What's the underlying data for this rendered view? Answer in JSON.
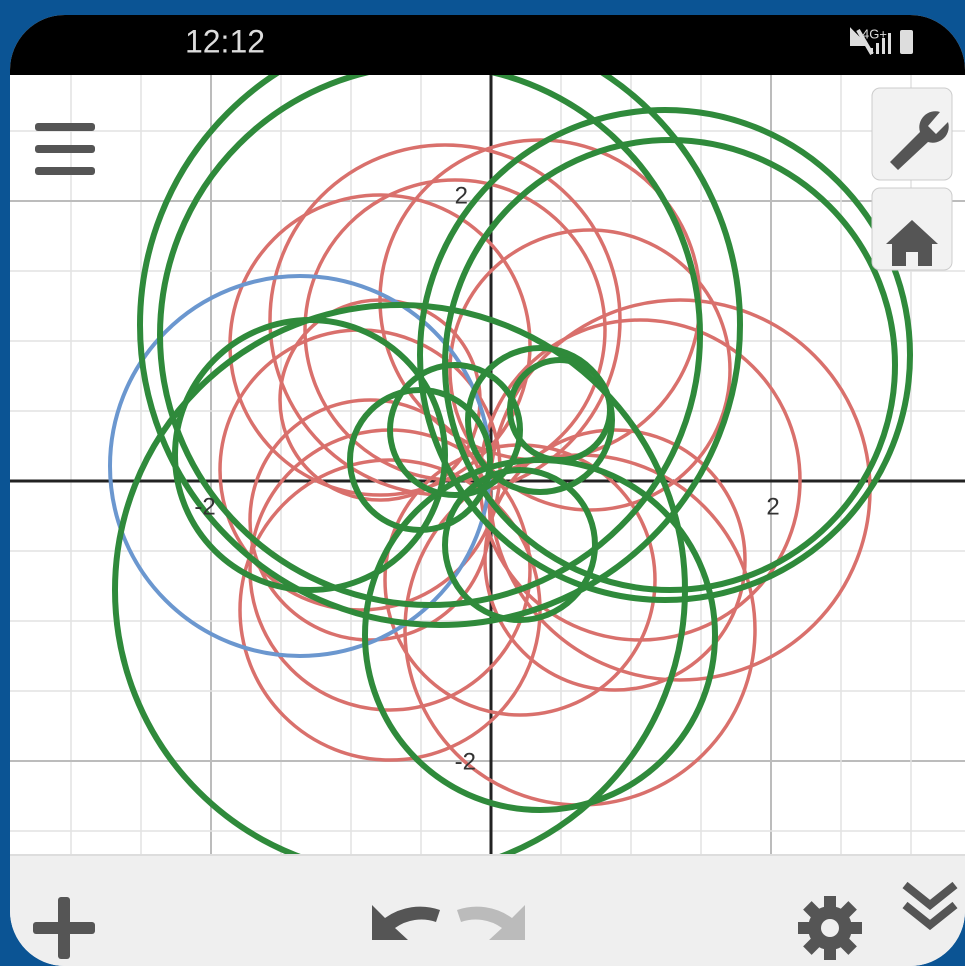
{
  "status_bar": {
    "time": "12:12",
    "network": "4G+"
  },
  "graph": {
    "x_tick_labels": [
      "-2",
      "2"
    ],
    "y_tick_labels": [
      "2",
      "-2"
    ]
  }
}
